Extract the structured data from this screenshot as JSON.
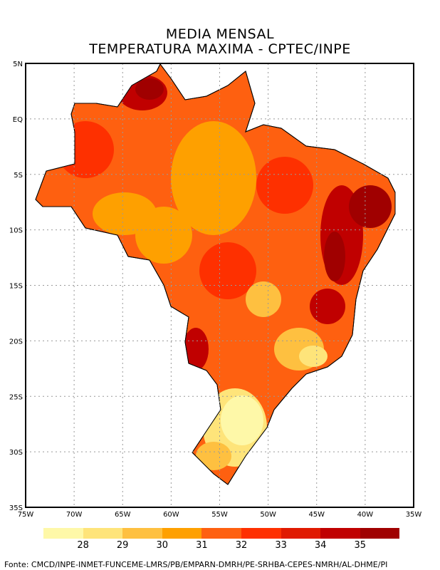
{
  "title": {
    "line1": "MEDIA MENSAL",
    "line2": "TEMPERATURA MAXIMA - CPTEC/INPE"
  },
  "axes": {
    "lat_labels": [
      "5N",
      "EQ",
      "5S",
      "10S",
      "15S",
      "20S",
      "25S",
      "30S",
      "35S"
    ],
    "lon_labels": [
      "75W",
      "70W",
      "65W",
      "60W",
      "55W",
      "50W",
      "45W",
      "40W",
      "35W"
    ]
  },
  "colorbar": {
    "colors": [
      "#fef8a8",
      "#fee47a",
      "#fec040",
      "#fea000",
      "#fe6010",
      "#fe3000",
      "#e01a00",
      "#c00000",
      "#a00000"
    ],
    "labels": [
      "28",
      "29",
      "30",
      "31",
      "32",
      "33",
      "34",
      "35"
    ]
  },
  "footer": "Fonte: CMCD/INPE-INMET-FUNCEME-LMRS/PB/EMPARN-DMRH/PE-SRHBA-CEPES-NMRH/AL-DHME/PI"
}
